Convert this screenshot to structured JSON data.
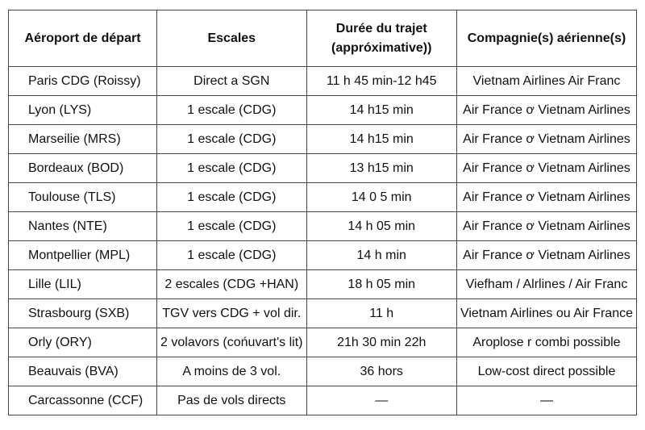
{
  "table": {
    "headers": [
      "Aéroport de départ",
      "Escales",
      "Durée du trajet (appróximative))",
      "Compagnie(s) aérienne(s)"
    ],
    "rows": [
      [
        "Paris CDG (Roissy)",
        "Direct a SGN",
        "11 h 45 min-12 h45",
        "Vietnam Airlines  Air Franc"
      ],
      [
        "Lyon (LYS)",
        "1 escale (CDG)",
        "14 h15 min",
        "Air France ơ Vietnam Airlines"
      ],
      [
        "Marseilie (MRS)",
        "1 escale (CDG)",
        "14 h15 min",
        "Air France ơ Vietnam Airlines"
      ],
      [
        "Bordeaux (BOD)",
        "1 escale (CDG)",
        "13 h15 min",
        "Air France ơ Vietnam Airlines"
      ],
      [
        "Toulouse (TLS)",
        "1 escale (CDG)",
        "14 0  5 min",
        "Air France ơ Vietnam Airlines"
      ],
      [
        "Nantes (NTE)",
        "1 escale (CDG)",
        "14 h 05 min",
        "Air France ơ Vietnam Airlines"
      ],
      [
        "Montpellier (MPL)",
        "1 escale (CDG)",
        "14 h min",
        "Air France ơ Vietnam Airlines"
      ],
      [
        "Lille (LIL)",
        "2 escales (CDG +HAN)",
        "18 h 05 min",
        "Viefham / Alrlines / Air Franc"
      ],
      [
        "Strasbourg (SXB)",
        "TGV vers CDG + vol dir.",
        "11 h",
        "Vietnam Airlines ou Air France"
      ],
      [
        "Orly (ORY)",
        "2 volavors (cońuvart's lit)",
        "21h 30 min 22h",
        "Aroplose r combi possible"
      ],
      [
        "Beauvais (BVA)",
        "A moins de 3 vol.",
        "36 hors",
        "Low-cost direct possible"
      ],
      [
        "Carcassonne (CCF)",
        "Pas de vols directs",
        "—",
        "—"
      ]
    ]
  }
}
